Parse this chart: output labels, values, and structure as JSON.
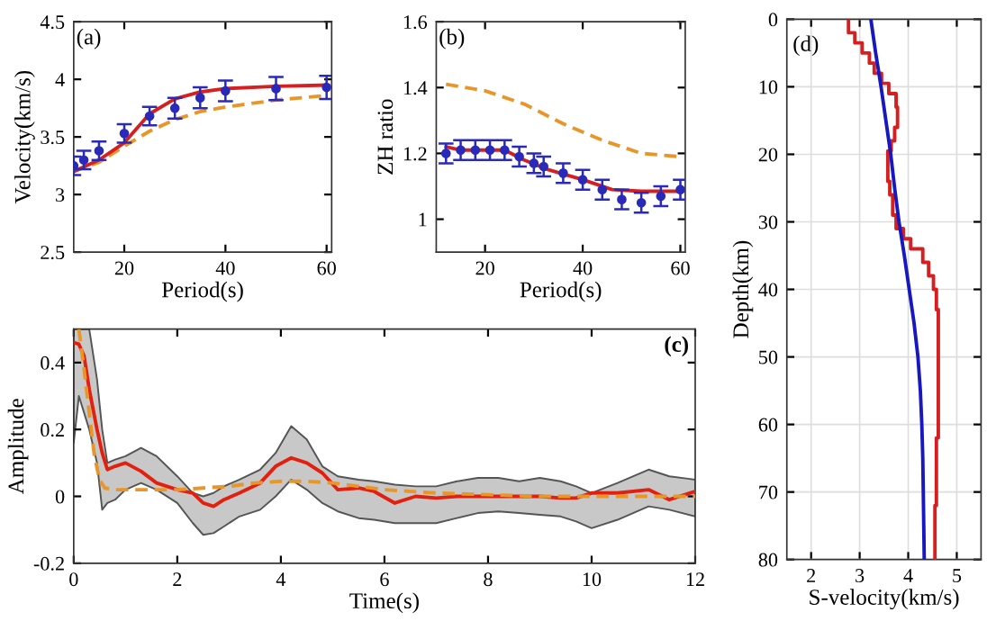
{
  "chart_data": [
    {
      "type": "line",
      "title": "(a)",
      "xlabel": "Period(s)",
      "ylabel": "Velocity(km/s)",
      "xlim": [
        10,
        61
      ],
      "xticks": [
        20,
        40,
        60
      ],
      "ylim": [
        2.5,
        4.5
      ],
      "yticks": [
        2.5,
        3,
        3.5,
        4,
        4.5
      ],
      "grid": false,
      "series": [
        {
          "type": "scatter",
          "color": "#2a2ab8",
          "marker": "circle",
          "x": [
            10,
            12,
            15,
            20,
            25,
            30,
            35,
            40,
            50,
            60
          ],
          "values": [
            3.25,
            3.3,
            3.38,
            3.53,
            3.68,
            3.75,
            3.84,
            3.9,
            3.92,
            3.93
          ],
          "errors": [
            0.08,
            0.08,
            0.08,
            0.08,
            0.08,
            0.09,
            0.09,
            0.09,
            0.1,
            0.1
          ]
        },
        {
          "color": "#e8962a",
          "line_style": "dashed",
          "x": [
            10,
            15,
            20,
            25,
            30,
            35,
            40,
            50,
            60
          ],
          "values": [
            3.2,
            3.28,
            3.42,
            3.55,
            3.65,
            3.72,
            3.76,
            3.82,
            3.86
          ]
        },
        {
          "color": "#d42020",
          "line_style": "solid",
          "x": [
            10,
            15,
            20,
            25,
            30,
            35,
            40,
            50,
            60
          ],
          "values": [
            3.2,
            3.3,
            3.45,
            3.7,
            3.83,
            3.89,
            3.92,
            3.94,
            3.95
          ]
        }
      ]
    },
    {
      "type": "line",
      "title": "(b)",
      "xlabel": "Period(s)",
      "ylabel": "ZH ratio",
      "xlim": [
        10,
        61
      ],
      "xticks": [
        20,
        40,
        60
      ],
      "ylim": [
        0.9,
        1.6
      ],
      "yticks": [
        1,
        1.2,
        1.4,
        1.6
      ],
      "grid": false,
      "series": [
        {
          "type": "scatter",
          "color": "#2a2ab8",
          "marker": "circle",
          "x": [
            12,
            15,
            18,
            21,
            24,
            27,
            30,
            32,
            36,
            40,
            44,
            48,
            52,
            56,
            60
          ],
          "values": [
            1.2,
            1.21,
            1.21,
            1.21,
            1.21,
            1.19,
            1.17,
            1.16,
            1.14,
            1.12,
            1.09,
            1.06,
            1.05,
            1.07,
            1.09
          ],
          "errors": [
            0.03,
            0.03,
            0.03,
            0.03,
            0.03,
            0.03,
            0.03,
            0.03,
            0.03,
            0.03,
            0.03,
            0.03,
            0.03,
            0.03,
            0.03
          ]
        },
        {
          "color": "#e8962a",
          "line_style": "dashed",
          "x": [
            12,
            20,
            28,
            36,
            44,
            52,
            60
          ],
          "values": [
            1.41,
            1.39,
            1.35,
            1.29,
            1.24,
            1.2,
            1.19
          ]
        },
        {
          "color": "#d42020",
          "line_style": "solid",
          "x": [
            12,
            15,
            24,
            28,
            33,
            40,
            46,
            52,
            60
          ],
          "values": [
            1.22,
            1.21,
            1.21,
            1.18,
            1.15,
            1.12,
            1.09,
            1.085,
            1.085
          ]
        }
      ]
    },
    {
      "type": "line",
      "title": "(c)",
      "xlabel": "Time(s)",
      "ylabel": "Amplitude",
      "xlim": [
        0,
        12
      ],
      "xticks": [
        0,
        2,
        4,
        6,
        8,
        10,
        12
      ],
      "ylim": [
        -0.2,
        0.5
      ],
      "yticks": [
        -0.2,
        0,
        0.2,
        0.4
      ],
      "grid": false,
      "series": [
        {
          "color": "#e22010",
          "line_style": "solid",
          "x": [
            0,
            0.1,
            0.2,
            0.3,
            0.45,
            0.55,
            0.65,
            0.8,
            1.0,
            1.3,
            1.6,
            2.0,
            2.3,
            2.5,
            2.7,
            2.9,
            3.2,
            3.6,
            3.9,
            4.2,
            4.5,
            4.8,
            5.1,
            5.5,
            5.8,
            6.2,
            6.6,
            7.0,
            7.4,
            7.8,
            8.2,
            8.6,
            9.0,
            9.4,
            9.7,
            10.0,
            10.5,
            11.1,
            11.5,
            12
          ],
          "values": [
            0.46,
            0.455,
            0.42,
            0.32,
            0.2,
            0.13,
            0.08,
            0.09,
            0.1,
            0.075,
            0.04,
            0.02,
            0.01,
            -0.02,
            -0.03,
            -0.01,
            0.01,
            0.04,
            0.09,
            0.115,
            0.1,
            0.07,
            0.02,
            0.025,
            0.015,
            -0.02,
            0.0,
            -0.005,
            0.0,
            0.0,
            0.0,
            0.0,
            0.0,
            -0.005,
            -0.005,
            0.01,
            0.01,
            0.02,
            -0.01,
            0.015
          ],
          "upper": [
            0.5,
            0.5,
            0.5,
            0.5,
            0.35,
            0.2,
            0.1,
            0.11,
            0.12,
            0.145,
            0.12,
            0.06,
            0.01,
            0.0,
            0.01,
            0.03,
            0.05,
            0.08,
            0.13,
            0.21,
            0.17,
            0.09,
            0.06,
            0.05,
            0.045,
            0.035,
            0.03,
            0.03,
            0.045,
            0.055,
            0.055,
            0.045,
            0.055,
            0.045,
            0.03,
            0.01,
            0.04,
            0.08,
            0.06,
            0.05
          ],
          "lower": [
            0.16,
            0.3,
            0.25,
            0.2,
            0.1,
            -0.04,
            -0.02,
            -0.01,
            0.02,
            0.04,
            0.02,
            -0.02,
            -0.08,
            -0.115,
            -0.11,
            -0.09,
            -0.06,
            -0.04,
            0.0,
            0.05,
            0.02,
            -0.02,
            -0.045,
            -0.065,
            -0.07,
            -0.08,
            -0.08,
            -0.08,
            -0.065,
            -0.05,
            -0.045,
            -0.05,
            -0.055,
            -0.06,
            -0.075,
            -0.095,
            -0.07,
            -0.03,
            -0.04,
            -0.06
          ]
        },
        {
          "color": "#e8962a",
          "line_style": "dashed",
          "x": [
            0.1,
            0.2,
            0.3,
            0.4,
            0.5,
            0.6,
            0.8,
            2.0,
            2.5,
            3.0,
            3.5,
            4.0,
            4.5,
            5.0,
            5.5,
            6.0,
            7.0,
            8.0,
            9.0,
            10.0,
            12
          ],
          "values": [
            0.5,
            0.38,
            0.25,
            0.12,
            0.05,
            0.025,
            0.02,
            0.02,
            0.025,
            0.03,
            0.04,
            0.045,
            0.045,
            0.04,
            0.03,
            0.02,
            0.01,
            0.005,
            0.0,
            0.0,
            0.0
          ]
        }
      ]
    },
    {
      "type": "line",
      "title": "(d)",
      "xlabel": "S-velocity(km/s)",
      "ylabel": "Depth(km)",
      "xlim": [
        1.5,
        5.5
      ],
      "xticks": [
        2,
        3,
        4,
        5
      ],
      "ylim": [
        80,
        0
      ],
      "yticks": [
        0,
        10,
        20,
        30,
        40,
        50,
        60,
        70,
        80
      ],
      "grid": true,
      "series": [
        {
          "color": "#d42020",
          "line_style": "solid",
          "x": [
            2.77,
            2.77,
            2.9,
            2.9,
            3.05,
            3.05,
            3.2,
            3.2,
            3.3,
            3.3,
            3.45,
            3.45,
            3.6,
            3.6,
            3.75,
            3.75,
            3.78,
            3.78,
            3.72,
            3.72,
            3.65,
            3.65,
            3.58,
            3.58,
            3.62,
            3.62,
            3.68,
            3.68,
            3.75,
            3.75,
            3.9,
            3.9,
            4.05,
            4.05,
            4.3,
            4.3,
            4.42,
            4.42,
            4.52,
            4.52,
            4.58,
            4.58,
            4.62,
            4.62,
            4.58,
            4.58,
            4.55,
            4.55
          ],
          "values": [
            0,
            2,
            2,
            3.5,
            3.5,
            5,
            5,
            6.5,
            6.5,
            8,
            8,
            9.5,
            9.5,
            11,
            11,
            13,
            13,
            16,
            16,
            18,
            18,
            19.5,
            19.5,
            24,
            24,
            26,
            26,
            29,
            29,
            31,
            31,
            32.5,
            32.5,
            34,
            34,
            36,
            36,
            38,
            38,
            40,
            40,
            43,
            43,
            62,
            62,
            72,
            72,
            80
          ]
        },
        {
          "color": "#1818c0",
          "line_style": "solid",
          "x": [
            3.23,
            3.33,
            3.44,
            3.54,
            3.64,
            3.72,
            3.81,
            3.92,
            4.02,
            4.12,
            4.2,
            4.25,
            4.28,
            4.3,
            4.31,
            4.32,
            4.33
          ],
          "values": [
            0,
            5,
            10,
            15,
            20,
            25,
            30,
            35,
            40,
            45,
            50,
            55,
            60,
            65,
            70,
            75,
            80
          ]
        }
      ]
    }
  ]
}
